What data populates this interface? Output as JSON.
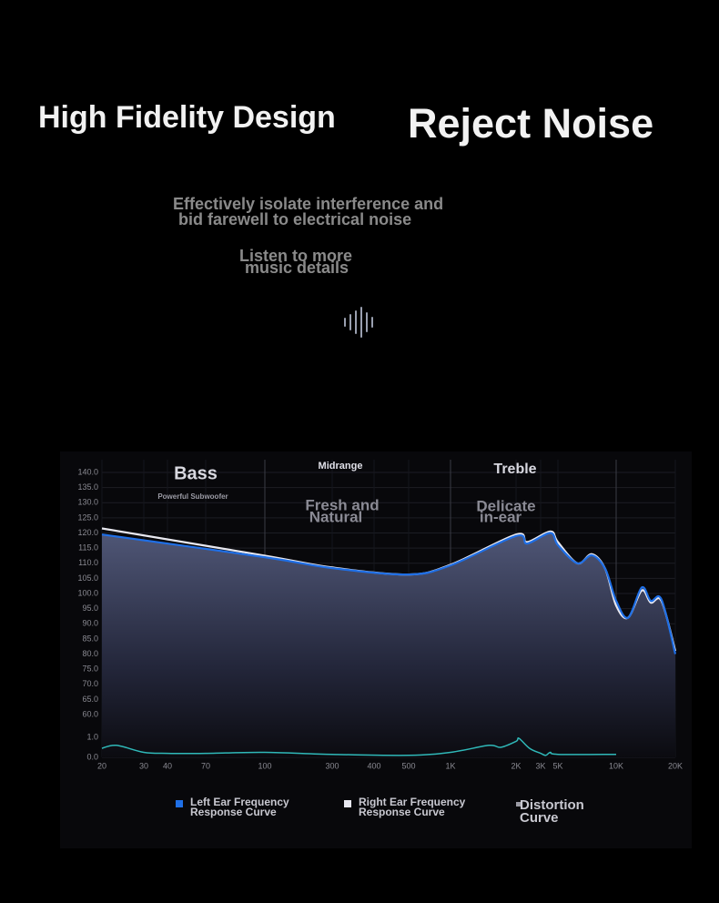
{
  "header": {
    "left_title": "High Fidelity Design",
    "right_title": "Reject Noise",
    "description": [
      "Effectively isolate interference and",
      "bid farewell to electrical noise"
    ],
    "tagline": [
      "Listen to more",
      "music details"
    ]
  },
  "chart_data": {
    "type": "line",
    "annotations": [
      "Bass",
      "Powerful Subwoofer",
      "Midrange",
      "Treble",
      "Fresh and",
      "Natural",
      "Delicate",
      "in-ear"
    ],
    "xscale": "log",
    "xticks": [
      20,
      30,
      40,
      70,
      100,
      300,
      400,
      500,
      {
        "value": 1000,
        "label": "1K"
      },
      {
        "value": 2000,
        "label": "2K"
      },
      {
        "value": 3000,
        "label": "3K"
      },
      {
        "value": 5000,
        "label": "5K"
      },
      {
        "value": 10000,
        "label": "10K"
      },
      {
        "value": 20000,
        "label": "20K"
      }
    ],
    "xlim": [
      20,
      20000
    ],
    "ylim": [
      0,
      140
    ],
    "yticks": [
      {
        "value": 140,
        "label": "140.0"
      },
      {
        "value": 135,
        "label": "135.0"
      },
      {
        "value": 130,
        "label": "130.0"
      },
      {
        "value": 125,
        "label": "125.0"
      },
      {
        "value": 120,
        "label": "120.0"
      },
      {
        "value": 115,
        "label": "115.0"
      },
      {
        "value": 110,
        "label": "110.0"
      },
      {
        "value": 105,
        "label": "105.0"
      },
      {
        "value": 100,
        "label": "100.0"
      },
      {
        "value": 95,
        "label": "95.0"
      },
      {
        "value": 90,
        "label": "90.0"
      },
      {
        "value": 85,
        "label": "85.0"
      },
      {
        "value": 80,
        "label": "80.0"
      },
      {
        "value": 75,
        "label": "75.0"
      },
      {
        "value": 70,
        "label": "70.0"
      },
      {
        "value": 65,
        "label": "65.0"
      },
      {
        "value": 60,
        "label": "60.0"
      },
      {
        "value": 1,
        "label": "1.0"
      },
      {
        "value": 0,
        "label": "0.0"
      }
    ],
    "grid": true,
    "series": [
      {
        "name": "Left Ear Frequency Response Curve",
        "color": "#1f6fe6",
        "x": [
          20,
          100,
          300,
          500,
          1000,
          2000,
          2400,
          4000,
          5000,
          6300,
          7500,
          8800,
          10000,
          11500,
          13500,
          15000,
          17000,
          20000
        ],
        "values": [
          119.5,
          112,
          108.4,
          106.3,
          109.3,
          119,
          116.5,
          120,
          116,
          110,
          112.6,
          108,
          97.6,
          92,
          102,
          97.6,
          98,
          80
        ]
      },
      {
        "name": "Right Ear Frequency Response Curve",
        "color": "#e8e8f0",
        "x": [
          20,
          100,
          300,
          500,
          1000,
          2000,
          2400,
          4000,
          5000,
          6300,
          7500,
          8800,
          10000,
          11500,
          13500,
          15000,
          17000,
          20000
        ],
        "values": [
          121.5,
          112.5,
          108.6,
          106.3,
          109.5,
          119.5,
          117,
          120.5,
          117,
          110,
          113,
          108,
          96,
          92,
          101,
          97,
          97.5,
          81
        ]
      },
      {
        "name": "Distortion Curve",
        "color": "#2fb8b8",
        "x": [
          20,
          23,
          30,
          40,
          70,
          100,
          300,
          500,
          1000,
          1500,
          1700,
          2000,
          2100,
          2500,
          3000,
          3500,
          4000,
          5000,
          10000
        ],
        "values": [
          0.45,
          0.6,
          0.25,
          0.2,
          0.2,
          0.25,
          0.15,
          0.1,
          0.25,
          0.6,
          0.5,
          0.8,
          0.95,
          0.45,
          0.2,
          0.1,
          0.25,
          0.15,
          0.15
        ]
      }
    ]
  }
}
